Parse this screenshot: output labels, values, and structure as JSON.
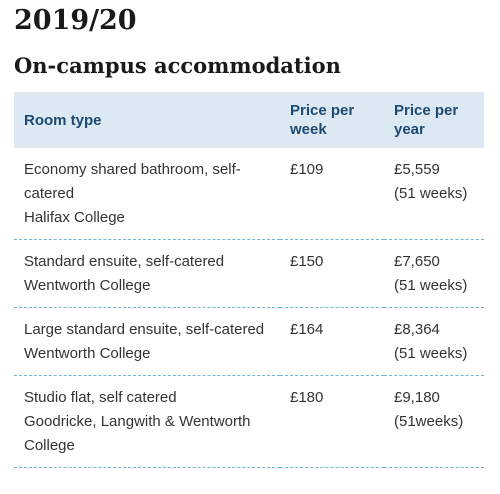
{
  "year_heading": "2019/20",
  "section_heading": "On-campus accommodation",
  "table": {
    "headers": [
      "Room type",
      "Price per week",
      "Price per year"
    ],
    "rows": [
      {
        "room_type": "Economy shared bathroom, self-catered",
        "location": "Halifax College",
        "price_per_week": "£109",
        "price_per_year": "£5,559",
        "weeks": "(51 weeks)"
      },
      {
        "room_type": "Standard ensuite, self-catered",
        "location": "Wentworth College",
        "price_per_week": "£150",
        "price_per_year": "£7,650",
        "weeks": "(51 weeks)"
      },
      {
        "room_type": "Large standard ensuite, self-catered",
        "location": "Wentworth College",
        "price_per_week": "£164",
        "price_per_year": "£8,364",
        "weeks": "(51 weeks)"
      },
      {
        "room_type": "Studio flat, self catered",
        "location": "Goodricke, Langwith & Wentworth College",
        "price_per_week": "£180",
        "price_per_year": "£9,180",
        "weeks": "(51weeks)"
      }
    ]
  }
}
